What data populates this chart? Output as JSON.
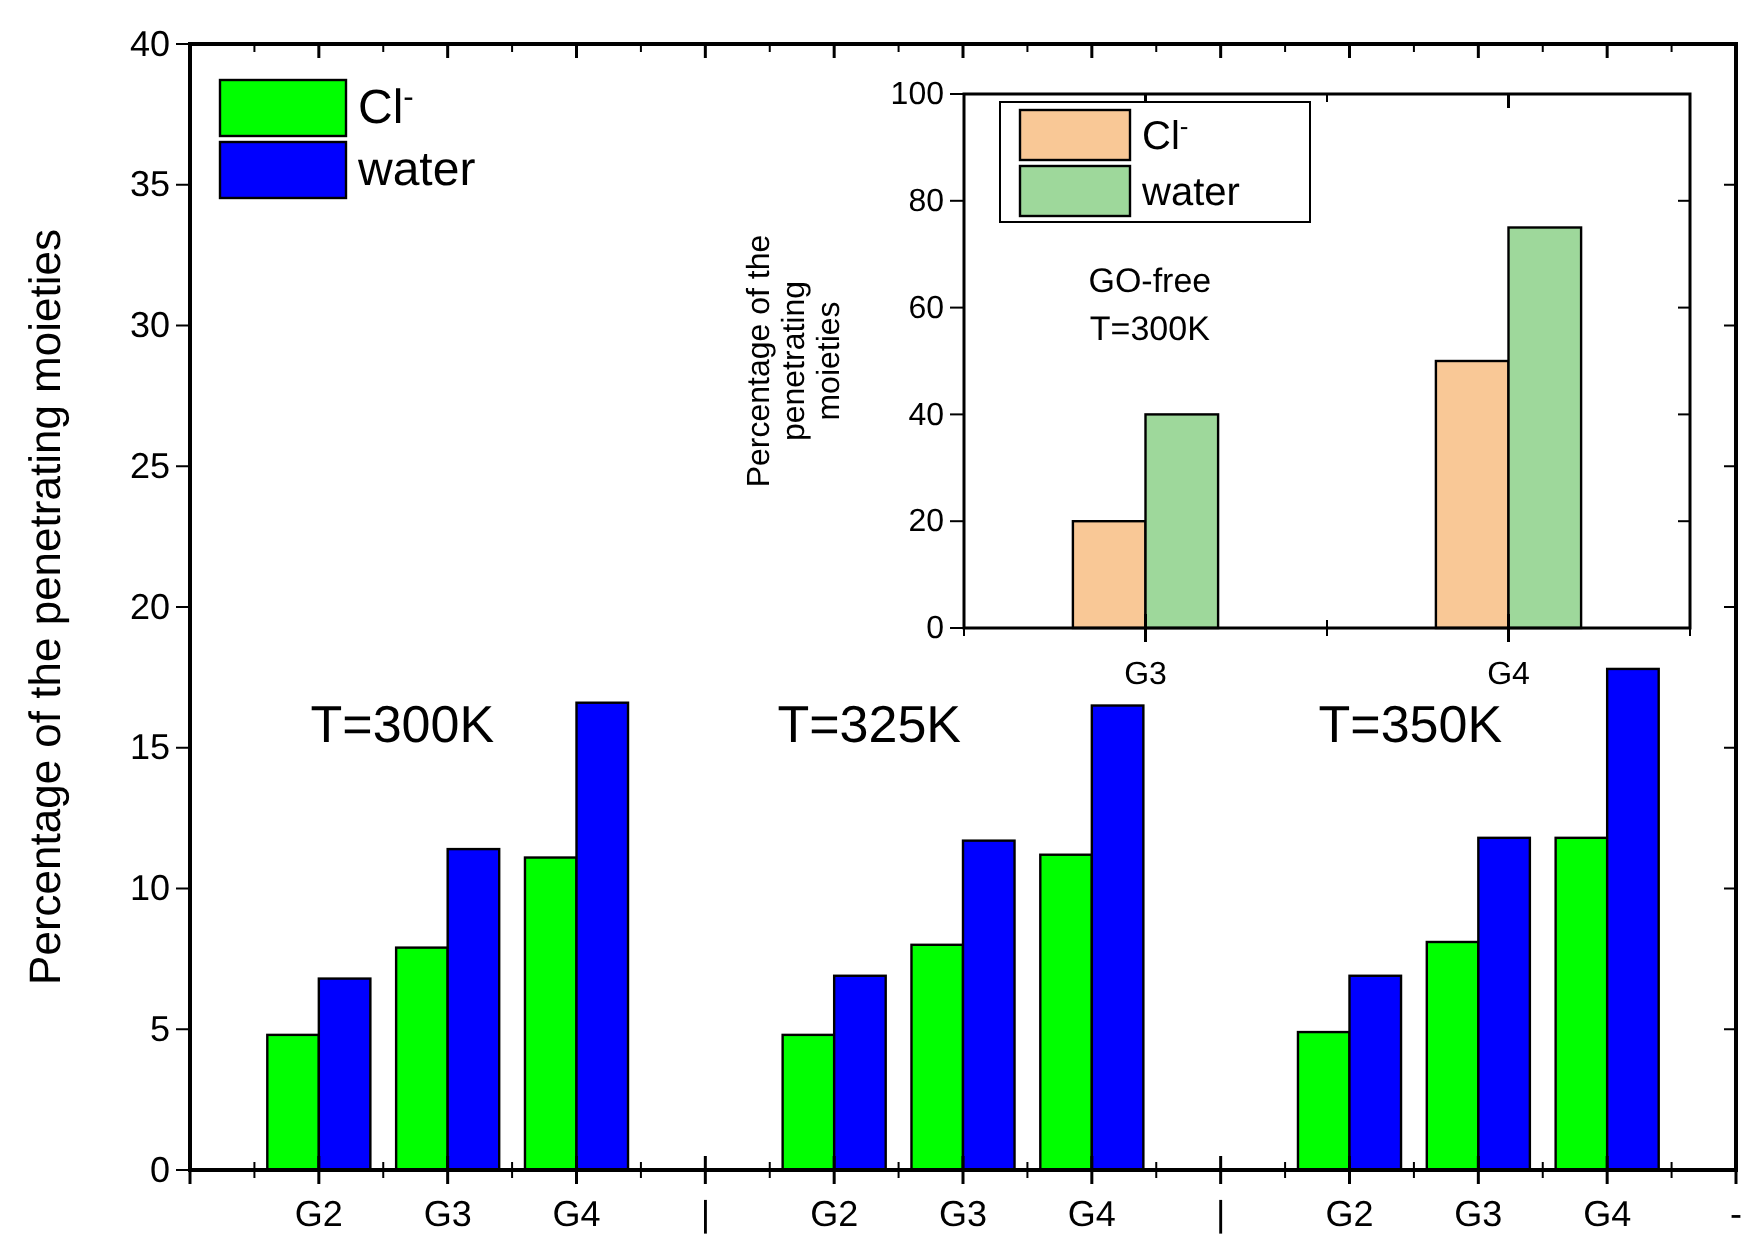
{
  "chart_data": [
    {
      "type": "bar",
      "ylabel": "Percentage of the penetrating moieties",
      "categories": [
        null,
        "G2",
        "G3",
        "G4",
        "|",
        "G2",
        "G3",
        "G4",
        "|",
        "G2",
        "G3",
        "G4",
        "-"
      ],
      "series": [
        {
          "name": "Cl$^{-}$",
          "color": "#00ff00",
          "values": [
            null,
            4.8,
            7.9,
            11.1,
            null,
            4.8,
            8.0,
            11.2,
            null,
            4.9,
            8.1,
            11.8,
            null
          ]
        },
        {
          "name": "water",
          "color": "#0000ff",
          "values": [
            null,
            6.8,
            11.4,
            16.6,
            null,
            6.9,
            11.7,
            16.5,
            null,
            6.9,
            11.8,
            17.8,
            null
          ]
        }
      ],
      "ylim": [
        0,
        40
      ],
      "yticks": [
        0,
        5,
        10,
        15,
        20,
        25,
        30,
        35,
        40
      ],
      "legend": "top left",
      "grid": false,
      "annotations": [
        "T=300K",
        "T=325K",
        "T=350K"
      ]
    },
    {
      "type": "bar",
      "ylabel": "Percentage of the penetrating moieties",
      "categories": [
        "G3",
        "G4"
      ],
      "series": [
        {
          "name": "Cl$^{-}$",
          "color": "#f9c896",
          "values": [
            20,
            50
          ]
        },
        {
          "name": "water",
          "color": "#9ed89b",
          "values": [
            40,
            75
          ]
        }
      ],
      "ylim": [
        0,
        100
      ],
      "yticks": [
        0,
        20,
        40,
        60,
        80,
        100
      ],
      "legend": "top left",
      "grid": false,
      "annotations": [
        "GO-free",
        "T=300K"
      ]
    }
  ]
}
